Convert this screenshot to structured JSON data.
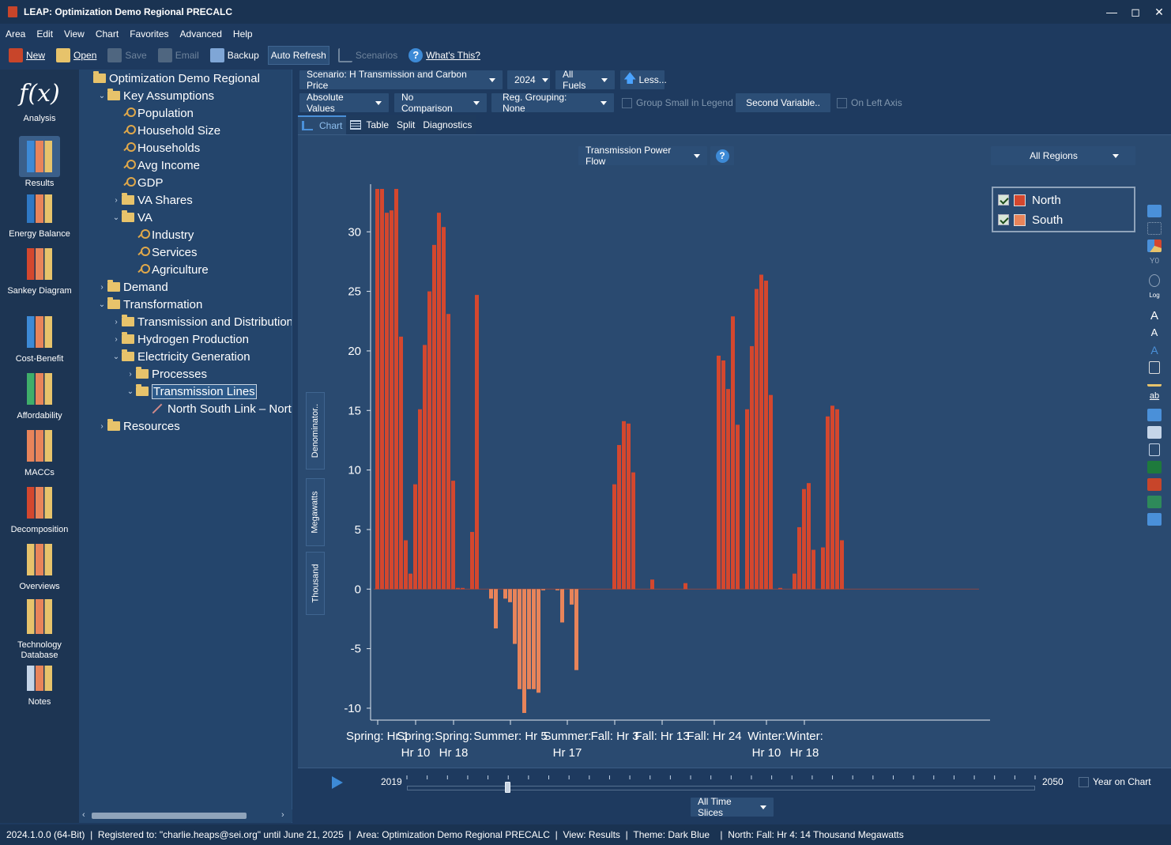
{
  "window": {
    "title": "LEAP: Optimization Demo Regional PRECALC"
  },
  "menu": [
    "Area",
    "Edit",
    "View",
    "Chart",
    "Favorites",
    "Advanced",
    "Help"
  ],
  "toolbar": {
    "new": "New",
    "open": "Open",
    "save": "Save",
    "email": "Email",
    "backup": "Backup",
    "auto_refresh": "Auto Refresh",
    "scenarios": "Scenarios",
    "whats_this": "What's This?"
  },
  "views": [
    {
      "label": "Analysis",
      "icon": "function-icon"
    },
    {
      "label": "Results",
      "icon": "bar-chart-icon"
    },
    {
      "label": "Energy Balance",
      "icon": "balance-icon"
    },
    {
      "label": "Sankey Diagram",
      "icon": "sankey-icon"
    },
    {
      "label": "Cost-Benefit",
      "icon": "cost-benefit-icon"
    },
    {
      "label": "Affordability",
      "icon": "affordability-icon"
    },
    {
      "label": "MACCs",
      "icon": "macc-icon"
    },
    {
      "label": "Decomposition",
      "icon": "decomposition-icon"
    },
    {
      "label": "Overviews",
      "icon": "overviews-icon"
    },
    {
      "label": "Technology Database",
      "icon": "database-icon"
    },
    {
      "label": "Notes",
      "icon": "notes-icon"
    }
  ],
  "tree": [
    {
      "label": "Optimization Demo Regional",
      "type": "folder",
      "arrow": ""
    },
    {
      "label": "Key Assumptions",
      "type": "folder",
      "arrow": "v"
    },
    {
      "label": "Population",
      "type": "key",
      "arrow": ""
    },
    {
      "label": "Household Size",
      "type": "key",
      "arrow": ""
    },
    {
      "label": "Households",
      "type": "key",
      "arrow": ""
    },
    {
      "label": "Avg Income",
      "type": "key",
      "arrow": ""
    },
    {
      "label": "GDP",
      "type": "key",
      "arrow": ""
    },
    {
      "label": "VA Shares",
      "type": "folder",
      "arrow": ">"
    },
    {
      "label": "VA",
      "type": "folder",
      "arrow": "v"
    },
    {
      "label": "Industry",
      "type": "key",
      "arrow": ""
    },
    {
      "label": "Services",
      "type": "key",
      "arrow": ""
    },
    {
      "label": "Agriculture",
      "type": "key",
      "arrow": ""
    },
    {
      "label": "Demand",
      "type": "folder",
      "arrow": ">"
    },
    {
      "label": "Transformation",
      "type": "folder",
      "arrow": "v"
    },
    {
      "label": "Transmission and Distribution",
      "type": "folder",
      "arrow": ">"
    },
    {
      "label": "Hydrogen Production",
      "type": "folder",
      "arrow": ">"
    },
    {
      "label": "Electricity Generation",
      "type": "folder",
      "arrow": "v"
    },
    {
      "label": "Processes",
      "type": "folder",
      "arrow": ">"
    },
    {
      "label": "Transmission Lines",
      "type": "folder",
      "arrow": "v"
    },
    {
      "label": "North South Link – North t",
      "type": "line",
      "arrow": ""
    },
    {
      "label": "Resources",
      "type": "folder",
      "arrow": ">"
    }
  ],
  "controls": {
    "scenario": "Scenario: H Transmission and Carbon Price",
    "year": "2024",
    "fuels": "All Fuels",
    "less": "Less...",
    "values": "Absolute Values",
    "comparison": "No Comparison",
    "grouping": "Reg. Grouping: None",
    "group_small": "Group Small in Legend",
    "second_variable": "Second Variable..",
    "left_axis": "On Left Axis"
  },
  "tabs": [
    "Chart",
    "Table",
    "Split",
    "Diagnostics"
  ],
  "chart_panel": {
    "variable": "Transmission Power Flow",
    "regions": "All Regions",
    "denominator": "Denominator..",
    "units": "Megawatts",
    "scale": "Thousand"
  },
  "timeline": {
    "start": "2019",
    "end": "2050",
    "current_fraction": 0.16,
    "year_on_chart": "Year on Chart",
    "time_slices": "All Time Slices"
  },
  "status": [
    "2024.1.0.0 (64-Bit)",
    "Registered to: \"charlie.heaps@sei.org\" until June 21, 2025",
    "Area: Optimization Demo Regional PRECALC",
    "View: Results",
    "Theme: Dark Blue",
    "North: Fall: Hr 4: 14 Thousand Megawatts"
  ],
  "colors": {
    "north": "#d4472e",
    "south": "#e8845a",
    "background": "#1e3a5f",
    "panel": "#2a4a70"
  },
  "chart_data": {
    "type": "bar",
    "stacked": true,
    "ylim": [
      -11,
      34
    ],
    "yticks": [
      -10,
      -5,
      0,
      5,
      10,
      15,
      20,
      25,
      30
    ],
    "tick_labels": [
      [
        "Spring: Hr 1"
      ],
      [
        "Spring:",
        "Hr 10"
      ],
      [
        "Spring:",
        "Hr 18"
      ],
      [
        "Summer: Hr 5"
      ],
      [
        "Summer:",
        "Hr 17"
      ],
      [
        "Fall: Hr 3"
      ],
      [
        "Fall: Hr 13"
      ],
      [
        "Fall: Hr 24"
      ],
      [
        "Winter:",
        "Hr 10"
      ],
      [
        "Winter:",
        "Hr 18"
      ]
    ],
    "tick_index": [
      0.5,
      8.5,
      16.5,
      28.5,
      40.5,
      50.5,
      60.5,
      71.5,
      82.5,
      90.5
    ],
    "legend": [
      "North",
      "South"
    ],
    "series": [
      {
        "name": "North",
        "values": [
          33.6,
          33.6,
          31.6,
          31.8,
          33.6,
          21.2,
          4.1,
          1.3,
          8.8,
          15.1,
          20.5,
          25.0,
          28.9,
          31.6,
          30.4,
          23.1,
          9.1,
          0.1,
          0.1,
          0,
          4.8,
          24.7,
          0,
          0,
          0,
          0,
          0,
          0,
          0,
          0,
          0,
          0,
          0,
          0,
          0,
          0,
          0,
          0,
          0,
          0,
          0,
          0,
          0,
          0,
          0,
          0,
          0,
          0,
          0,
          0,
          8.8,
          12.1,
          14.1,
          13.9,
          9.8,
          0,
          0,
          0,
          0.8,
          0,
          0,
          0,
          0,
          0,
          0,
          0.5,
          0,
          0,
          0,
          0,
          0,
          0,
          19.6,
          19.2,
          16.8,
          22.9,
          13.8,
          0,
          15.1,
          20.4,
          25.2,
          26.4,
          25.9,
          16.3,
          0,
          0.1,
          0,
          0,
          1.3,
          5.2,
          8.4,
          8.9,
          3.3,
          0,
          3.5,
          14.5,
          15.4,
          15.1,
          4.1
        ]
      },
      {
        "name": "South",
        "values": [
          0,
          0,
          0,
          0,
          0,
          0,
          0,
          0,
          0,
          0,
          0,
          0,
          0,
          0,
          0,
          0,
          0,
          0,
          0,
          0,
          0,
          0,
          0,
          0,
          -0.8,
          -3.3,
          0,
          -0.8,
          -1.1,
          -4.6,
          -8.4,
          -10.4,
          -8.4,
          -8.4,
          -8.7,
          -0.1,
          0,
          0,
          -0.1,
          -2.8,
          0,
          -1.3,
          -6.8,
          0,
          0,
          0,
          0,
          0,
          0,
          0,
          0,
          0,
          0,
          0,
          0,
          0,
          0,
          0,
          0,
          0,
          0,
          0,
          0,
          0,
          0,
          0,
          0,
          0,
          0,
          0,
          0,
          0,
          0,
          0,
          0,
          0,
          0,
          0,
          0,
          0,
          0,
          0,
          0,
          0,
          0,
          0,
          0,
          0,
          0,
          0,
          0,
          0,
          0,
          0,
          0,
          0,
          0,
          0,
          0,
          0,
          0,
          0,
          0
        ]
      }
    ],
    "grid": false
  }
}
